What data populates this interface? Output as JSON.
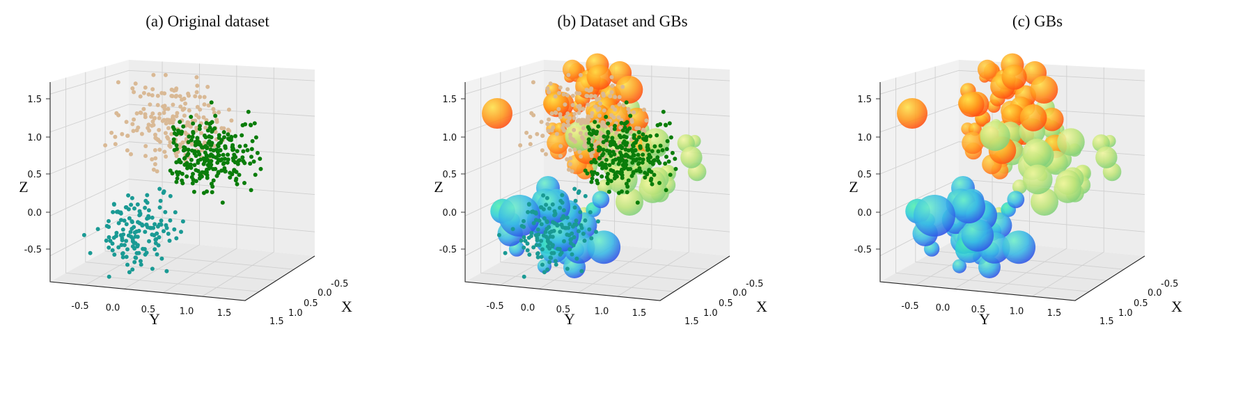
{
  "panels": [
    {
      "title": "(a) Original dataset",
      "layers": [
        "points"
      ]
    },
    {
      "title": "(b) Dataset and GBs",
      "layers": [
        "balls",
        "points"
      ]
    },
    {
      "title": "(c) GBs",
      "layers": [
        "balls"
      ]
    }
  ],
  "axes": {
    "x_label": "X",
    "y_label": "Y",
    "z_label": "Z",
    "x_ticks": [
      "-0.5",
      "0.0",
      "0.5",
      "1.0",
      "1.5"
    ],
    "y_ticks": [
      "-0.5",
      "0.0",
      "0.5",
      "1.0",
      "1.5"
    ],
    "z_ticks": [
      "-0.5",
      "0.0",
      "0.5",
      "1.0",
      "1.5"
    ]
  },
  "colors": {
    "tan": "#d9b995",
    "green": "#0a7d0a",
    "teal": "#1a9a94",
    "ball_red": "#ff5a1f",
    "ball_orange": "#ffb11f",
    "ball_yellowgreen": "#b8e46a",
    "ball_cyan": "#33e0c8",
    "ball_blue": "#2f55e8"
  },
  "chart_data": [
    {
      "type": "scatter",
      "title": "(a) Original dataset",
      "xlabel": "X",
      "ylabel": "Y",
      "zlabel": "Z",
      "xlim": [
        -0.8,
        1.6
      ],
      "ylim": [
        -0.8,
        1.6
      ],
      "zlim": [
        -0.9,
        1.7
      ],
      "series": [
        {
          "color": "#d9b995",
          "centroid": {
            "x": 0.0,
            "y": 0.45,
            "z": 1.2
          },
          "approx_points": 220
        },
        {
          "color": "#0a7d0a",
          "centroid": {
            "x": 0.2,
            "y": 1.1,
            "z": 0.75
          },
          "approx_points": 280
        },
        {
          "color": "#1a9a94",
          "centroid": {
            "x": 0.1,
            "y": 0.2,
            "z": -0.2
          },
          "approx_points": 160
        }
      ]
    },
    {
      "type": "scatter",
      "title": "(b) Dataset and GBs",
      "xlabel": "X",
      "ylabel": "Y",
      "zlabel": "Z",
      "xlim": [
        -0.8,
        1.6
      ],
      "ylim": [
        -0.8,
        1.6
      ],
      "zlim": [
        -0.9,
        1.7
      ]
    },
    {
      "type": "scatter",
      "title": "(c) GBs",
      "xlabel": "X",
      "ylabel": "Y",
      "zlabel": "Z",
      "xlim": [
        -0.8,
        1.6
      ],
      "ylim": [
        -0.8,
        1.6
      ],
      "zlim": [
        -0.9,
        1.7
      ]
    }
  ]
}
